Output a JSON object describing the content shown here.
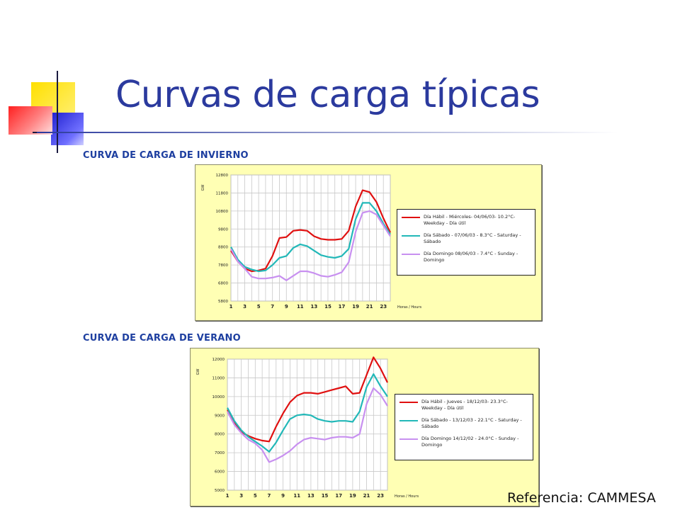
{
  "slide": {
    "title": "Curvas de carga típicas",
    "reference": "Referencia: CAMMESA"
  },
  "colors": {
    "title": "#2b3a9e",
    "heading": "#1e3fa0",
    "panel": "#ffffb4",
    "weekday": "#e01010",
    "saturday": "#22b8b8",
    "sunday": "#c890f0"
  },
  "chart_data": [
    {
      "type": "line",
      "title": "CURVA DE CARGA DE INVIERNO",
      "ylabel": "GW",
      "xlabel": "Horas / Hours",
      "ylim": [
        5800,
        12800
      ],
      "yticks": [
        "5800",
        "6800",
        "7800",
        "8800",
        "9800",
        "10800",
        "11800",
        "12800"
      ],
      "xticks": [
        "1",
        "3",
        "5",
        "7",
        "9",
        "11",
        "13",
        "15",
        "17",
        "19",
        "21",
        "23"
      ],
      "grid": true,
      "legend_position": "right",
      "x": [
        1,
        2,
        3,
        4,
        5,
        6,
        7,
        8,
        9,
        10,
        11,
        12,
        13,
        14,
        15,
        16,
        17,
        18,
        19,
        20,
        21,
        22,
        23,
        24
      ],
      "series": [
        {
          "name": "Día Hábil - Miércoles- 04/06/03- 10.2°C- Weekday - Día útil",
          "color": "weekday",
          "values": [
            8600,
            8000,
            7600,
            7450,
            7500,
            7600,
            8300,
            9300,
            9350,
            9700,
            9750,
            9700,
            9400,
            9250,
            9200,
            9200,
            9250,
            9700,
            11050,
            11950,
            11850,
            11300,
            10400,
            9600
          ]
        },
        {
          "name": "Día Sábado - 07/06/03 - 8.3°C - Saturday - Sábado",
          "color": "saturday",
          "values": [
            8800,
            8100,
            7700,
            7550,
            7450,
            7500,
            7800,
            8200,
            8300,
            8750,
            8950,
            8850,
            8600,
            8350,
            8250,
            8200,
            8300,
            8700,
            10350,
            11250,
            11250,
            10800,
            10100,
            9500
          ]
        },
        {
          "name": "Día Domingo 08/06/03 - 7.4°C - Sunday - Domingo",
          "color": "sunday",
          "values": [
            8700,
            8000,
            7600,
            7150,
            7050,
            7050,
            7100,
            7200,
            6950,
            7200,
            7450,
            7450,
            7350,
            7200,
            7150,
            7250,
            7400,
            7950,
            9650,
            10700,
            10800,
            10600,
            10000,
            9400
          ]
        }
      ]
    },
    {
      "type": "line",
      "title": "CURVA DE CARGA DE VERANO",
      "ylabel": "GW",
      "xlabel": "Horas / Hours",
      "ylim": [
        5000,
        12000
      ],
      "yticks": [
        "5000",
        "6000",
        "7000",
        "8000",
        "9000",
        "10000",
        "11000",
        "12000"
      ],
      "xticks": [
        "1",
        "3",
        "5",
        "7",
        "9",
        "11",
        "13",
        "15",
        "17",
        "19",
        "21",
        "23"
      ],
      "grid": true,
      "legend_position": "right",
      "x": [
        1,
        2,
        3,
        4,
        5,
        6,
        7,
        8,
        9,
        10,
        11,
        12,
        13,
        14,
        15,
        16,
        17,
        18,
        19,
        20,
        21,
        22,
        23,
        24
      ],
      "series": [
        {
          "name": "Día Hábil - Jueves - 18/12/03- 23.3°C- Weekday - Día útil",
          "color": "weekday",
          "values": [
            9300,
            8600,
            8100,
            7900,
            7750,
            7650,
            7600,
            8400,
            9100,
            9700,
            10050,
            10200,
            10200,
            10150,
            10250,
            10350,
            10450,
            10550,
            10150,
            10200,
            11150,
            12100,
            11500,
            10750
          ]
        },
        {
          "name": "Día Sábado - 13/12/03 - 22.1°C - Saturday - Sábado",
          "color": "saturday",
          "values": [
            9400,
            8700,
            8200,
            7850,
            7600,
            7350,
            7050,
            7550,
            8200,
            8800,
            9000,
            9050,
            9000,
            8800,
            8700,
            8650,
            8700,
            8700,
            8650,
            9200,
            10500,
            11200,
            10550,
            10000
          ]
        },
        {
          "name": "Día Domingo 14/12/02 - 24.0°C - Sunday - Domingo",
          "color": "sunday",
          "values": [
            9200,
            8500,
            8050,
            7700,
            7500,
            7150,
            6500,
            6650,
            6850,
            7100,
            7450,
            7700,
            7800,
            7750,
            7700,
            7800,
            7850,
            7850,
            7800,
            8000,
            9600,
            10450,
            10100,
            9500
          ]
        }
      ]
    }
  ]
}
